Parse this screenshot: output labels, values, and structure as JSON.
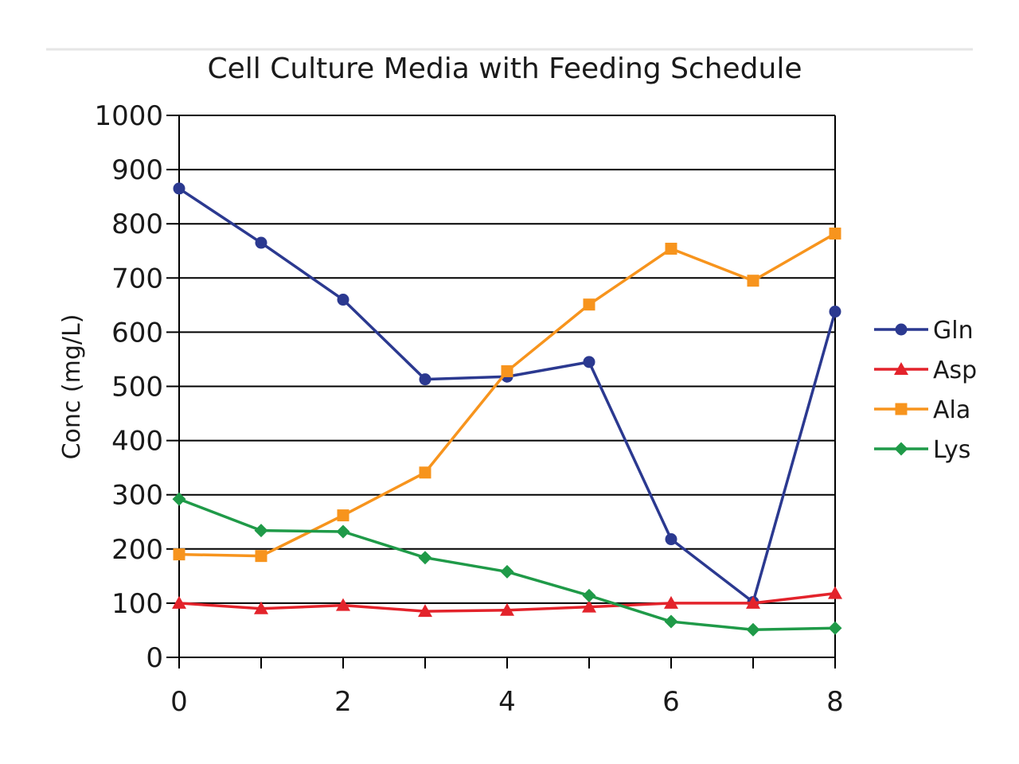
{
  "chart_data": {
    "type": "line",
    "title": "Cell Culture Media with Feeding Schedule",
    "xlabel": "",
    "ylabel": "Conc (mg/L)",
    "xlim": [
      0,
      8
    ],
    "ylim": [
      0,
      1000
    ],
    "xticks": [
      0,
      2,
      4,
      6,
      8
    ],
    "yticks": [
      0,
      100,
      200,
      300,
      400,
      500,
      600,
      700,
      800,
      900,
      1000
    ],
    "grid": "horizontal",
    "legend_position": "right",
    "x": [
      0,
      1,
      2,
      3,
      4,
      5,
      6,
      7,
      8
    ],
    "series": [
      {
        "name": "Gln",
        "color": "#2b3990",
        "marker": "circle",
        "values": [
          865,
          765,
          660,
          513,
          518,
          545,
          218,
          102,
          638
        ]
      },
      {
        "name": "Asp",
        "color": "#e3232b",
        "marker": "triangle",
        "values": [
          100,
          90,
          96,
          85,
          87,
          93,
          100,
          100,
          118
        ]
      },
      {
        "name": "Ala",
        "color": "#f7941d",
        "marker": "square",
        "values": [
          190,
          187,
          262,
          341,
          528,
          651,
          754,
          695,
          782
        ]
      },
      {
        "name": "Lys",
        "color": "#1f9a48",
        "marker": "diamond",
        "values": [
          292,
          234,
          232,
          184,
          158,
          114,
          66,
          51,
          54
        ]
      }
    ]
  }
}
